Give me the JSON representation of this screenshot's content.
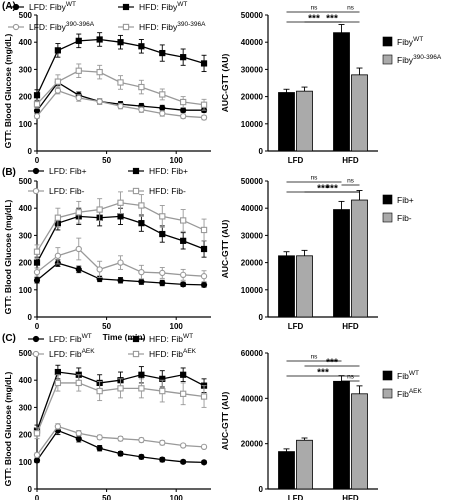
{
  "chart_data": [
    {
      "panel": "(A)",
      "type": "line",
      "xlabel": "",
      "ylabel": "GTT: Blood Glucose (mg/dL)",
      "xlim": [
        0,
        125
      ],
      "ylim": [
        0,
        500
      ],
      "xticks": [
        "0",
        "50",
        "100"
      ],
      "yticks": [
        "0",
        "100",
        "200",
        "300",
        "400",
        "500"
      ],
      "x": [
        0,
        15,
        30,
        45,
        60,
        75,
        90,
        105,
        120
      ],
      "series": [
        {
          "name": "LFD: Fiby",
          "sup": "WT",
          "marker": "circle-filled",
          "color": "#000000",
          "values": [
            148,
            252,
            205,
            182,
            172,
            165,
            158,
            150,
            150
          ],
          "err": [
            10,
            12,
            12,
            10,
            10,
            10,
            10,
            8,
            8
          ]
        },
        {
          "name": "HFD: Fiby",
          "sup": "WT",
          "marker": "square-filled",
          "color": "#000000",
          "values": [
            205,
            370,
            405,
            410,
            400,
            385,
            360,
            345,
            322
          ],
          "err": [
            20,
            25,
            25,
            25,
            25,
            25,
            30,
            30,
            30
          ]
        },
        {
          "name": "LFD: Fiby",
          "sup": "390-396A",
          "marker": "circle-open",
          "color": "#999999",
          "values": [
            128,
            222,
            195,
            182,
            165,
            152,
            138,
            128,
            123
          ],
          "err": [
            8,
            12,
            12,
            10,
            10,
            10,
            10,
            8,
            8
          ]
        },
        {
          "name": "HFD: Fiby",
          "sup": "390-396A",
          "marker": "square-open",
          "color": "#999999",
          "values": [
            172,
            255,
            295,
            290,
            252,
            235,
            208,
            180,
            170
          ],
          "err": [
            15,
            25,
            25,
            25,
            25,
            25,
            20,
            20,
            20
          ]
        }
      ]
    },
    {
      "panel": "(A)",
      "type": "bar",
      "ylabel": "AUC-GTT (AU)",
      "ylim": [
        0,
        50000
      ],
      "yticks": [
        "0",
        "10000",
        "20000",
        "30000",
        "40000",
        "50000"
      ],
      "categories": [
        "LFD",
        "HFD"
      ],
      "series": [
        {
          "name": "Fiby",
          "sup": "WT",
          "color": "#000000",
          "values": [
            21500,
            43500
          ],
          "err": [
            1200,
            3000
          ]
        },
        {
          "name": "Fiby",
          "sup": "390-396A",
          "color": "#aaaaaa",
          "values": [
            22000,
            28000
          ],
          "err": [
            1500,
            2500
          ]
        }
      ],
      "annotations": [
        "ns",
        "ns",
        "***",
        "***"
      ]
    },
    {
      "panel": "(B)",
      "type": "line",
      "xlabel": "Time (min)",
      "ylabel": "GTT: Blood Glucose (mg/dL)",
      "xlim": [
        0,
        125
      ],
      "ylim": [
        0,
        500
      ],
      "xticks": [
        "0",
        "50",
        "100"
      ],
      "yticks": [
        "0",
        "100",
        "200",
        "300",
        "400",
        "500"
      ],
      "x": [
        0,
        15,
        30,
        45,
        60,
        75,
        90,
        105,
        120
      ],
      "series": [
        {
          "name": "LFD: Fib+",
          "sup": "",
          "marker": "circle-filled",
          "color": "#000000",
          "values": [
            135,
            198,
            175,
            140,
            135,
            130,
            125,
            120,
            118
          ],
          "err": [
            10,
            12,
            12,
            10,
            10,
            10,
            10,
            8,
            8
          ]
        },
        {
          "name": "HFD: Fib+",
          "sup": "",
          "marker": "square-filled",
          "color": "#000000",
          "values": [
            200,
            345,
            370,
            365,
            370,
            345,
            305,
            280,
            250
          ],
          "err": [
            20,
            25,
            30,
            30,
            30,
            30,
            30,
            30,
            30
          ]
        },
        {
          "name": "LFD: Fib-",
          "sup": "",
          "marker": "circle-open",
          "color": "#999999",
          "values": [
            165,
            225,
            250,
            175,
            200,
            165,
            162,
            155,
            150
          ],
          "err": [
            15,
            30,
            40,
            30,
            25,
            25,
            20,
            20,
            20
          ]
        },
        {
          "name": "HFD: Fib-",
          "sup": "",
          "marker": "square-open",
          "color": "#999999",
          "values": [
            240,
            365,
            385,
            395,
            420,
            410,
            370,
            355,
            320
          ],
          "err": [
            25,
            35,
            40,
            40,
            40,
            40,
            40,
            40,
            40
          ]
        }
      ]
    },
    {
      "panel": "(B)",
      "type": "bar",
      "ylabel": "AUC-GTT (AU)",
      "ylim": [
        0,
        50000
      ],
      "yticks": [
        "0",
        "10000",
        "20000",
        "30000",
        "40000",
        "50000"
      ],
      "categories": [
        "LFD",
        "HFD"
      ],
      "series": [
        {
          "name": "Fib+",
          "sup": "",
          "color": "#000000",
          "values": [
            22500,
            39500
          ],
          "err": [
            1500,
            3000
          ]
        },
        {
          "name": "Fib-",
          "sup": "",
          "color": "#aaaaaa",
          "values": [
            22500,
            43000
          ],
          "err": [
            2000,
            3500
          ]
        }
      ],
      "annotations": [
        "ns",
        "***",
        "***",
        "ns"
      ]
    },
    {
      "panel": "(C)",
      "type": "line",
      "xlabel": "Time (min)",
      "ylabel": "GTT: Blood Glucose (mg/dL)",
      "xlim": [
        0,
        125
      ],
      "ylim": [
        0,
        500
      ],
      "xticks": [
        "0",
        "50",
        "100"
      ],
      "yticks": [
        "0",
        "100",
        "200",
        "300",
        "400",
        "500"
      ],
      "x": [
        0,
        15,
        30,
        45,
        60,
        75,
        90,
        105,
        120
      ],
      "series": [
        {
          "name": "LFD: Fib",
          "sup": "WT",
          "marker": "circle-filled",
          "color": "#000000",
          "values": [
            105,
            215,
            185,
            150,
            130,
            118,
            108,
            100,
            98
          ],
          "err": [
            8,
            15,
            12,
            10,
            8,
            8,
            8,
            6,
            6
          ]
        },
        {
          "name": "HFD: Fib",
          "sup": "WT",
          "marker": "square-filled",
          "color": "#000000",
          "values": [
            215,
            430,
            420,
            390,
            400,
            420,
            405,
            420,
            380
          ],
          "err": [
            20,
            25,
            25,
            30,
            30,
            30,
            30,
            25,
            25
          ]
        },
        {
          "name": "LFD: Fib",
          "sup": "AEK",
          "marker": "circle-open",
          "color": "#999999",
          "values": [
            125,
            230,
            205,
            190,
            185,
            180,
            170,
            160,
            155
          ],
          "err": [
            8,
            10,
            10,
            8,
            8,
            8,
            8,
            6,
            6
          ]
        },
        {
          "name": "HFD: Fib",
          "sup": "AEK",
          "marker": "square-open",
          "color": "#999999",
          "values": [
            205,
            390,
            390,
            360,
            370,
            370,
            360,
            350,
            340
          ],
          "err": [
            20,
            30,
            30,
            35,
            35,
            35,
            40,
            40,
            40
          ]
        }
      ]
    },
    {
      "panel": "(C)",
      "type": "bar",
      "ylabel": "AUC-GTT (AU)",
      "ylim": [
        0,
        60000
      ],
      "yticks": [
        "0",
        "20000",
        "40000",
        "60000"
      ],
      "categories": [
        "LFD",
        "HFD"
      ],
      "series": [
        {
          "name": "Fib",
          "sup": "WT",
          "color": "#000000",
          "values": [
            16500,
            47500
          ],
          "err": [
            1200,
            2500
          ]
        },
        {
          "name": "Fib",
          "sup": "AEK",
          "color": "#aaaaaa",
          "values": [
            21500,
            42000
          ],
          "err": [
            1000,
            3500
          ]
        }
      ],
      "annotations": [
        "ns",
        "***",
        "***",
        "ns"
      ]
    }
  ]
}
